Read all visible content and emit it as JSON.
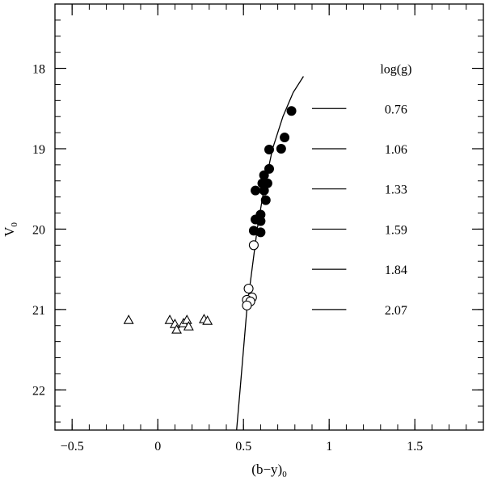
{
  "chart_data": {
    "type": "scatter",
    "xlabel": "(b−y)",
    "xlabel_sub": "0",
    "ylabel": "V",
    "ylabel_sub": "0",
    "xlim": [
      -0.6,
      1.9
    ],
    "ylim": [
      22.5,
      17.2
    ],
    "y_inverted": true,
    "x_major_ticks": [
      -0.5,
      0,
      0.5,
      1,
      1.5
    ],
    "x_tick_labels": [
      "−0.5",
      "0",
      "0.5",
      "1",
      "1.5"
    ],
    "x_minor_step": 0.1,
    "y_major_ticks": [
      18,
      19,
      20,
      21,
      22
    ],
    "y_tick_labels": [
      "18",
      "19",
      "20",
      "21",
      "22"
    ],
    "y_minor_step": 0.2,
    "grid": false,
    "legend": null,
    "series": [
      {
        "marker": "filled-circle",
        "points": [
          [
            0.78,
            18.53
          ],
          [
            0.74,
            18.86
          ],
          [
            0.72,
            19.0
          ],
          [
            0.65,
            19.01
          ],
          [
            0.65,
            19.25
          ],
          [
            0.62,
            19.33
          ],
          [
            0.61,
            19.43
          ],
          [
            0.64,
            19.43
          ],
          [
            0.62,
            19.52
          ],
          [
            0.57,
            19.52
          ],
          [
            0.63,
            19.64
          ],
          [
            0.6,
            19.82
          ],
          [
            0.57,
            19.88
          ],
          [
            0.6,
            19.9
          ],
          [
            0.56,
            20.02
          ],
          [
            0.6,
            20.04
          ]
        ]
      },
      {
        "marker": "open-circle",
        "points": [
          [
            0.56,
            20.2
          ],
          [
            0.53,
            20.74
          ],
          [
            0.55,
            20.85
          ],
          [
            0.52,
            20.88
          ],
          [
            0.54,
            20.9
          ],
          [
            0.52,
            20.95
          ]
        ]
      },
      {
        "marker": "open-triangle",
        "points": [
          [
            -0.17,
            21.13
          ],
          [
            0.07,
            21.13
          ],
          [
            0.1,
            21.18
          ],
          [
            0.11,
            21.25
          ],
          [
            0.15,
            21.17
          ],
          [
            0.17,
            21.13
          ],
          [
            0.18,
            21.21
          ],
          [
            0.27,
            21.12
          ],
          [
            0.29,
            21.14
          ]
        ]
      }
    ],
    "curve": [
      [
        0.46,
        22.5
      ],
      [
        0.48,
        22.0
      ],
      [
        0.5,
        21.5
      ],
      [
        0.52,
        21.0
      ],
      [
        0.55,
        20.5
      ],
      [
        0.58,
        20.0
      ],
      [
        0.62,
        19.5
      ],
      [
        0.67,
        19.0
      ],
      [
        0.73,
        18.6
      ],
      [
        0.79,
        18.3
      ],
      [
        0.85,
        18.1
      ]
    ],
    "loggg_title": "log(g)",
    "loggg_lines": [
      {
        "y": 18.5,
        "label": "0.76"
      },
      {
        "y": 19.0,
        "label": "1.06"
      },
      {
        "y": 19.5,
        "label": "1.33"
      },
      {
        "y": 20.0,
        "label": "1.59"
      },
      {
        "y": 20.5,
        "label": "1.84"
      },
      {
        "y": 21.0,
        "label": "2.07"
      }
    ],
    "loggg_line_x": [
      0.9,
      1.1
    ],
    "loggg_label_x": 1.39,
    "loggg_title_x": 1.39,
    "loggg_title_y": 18.0
  }
}
